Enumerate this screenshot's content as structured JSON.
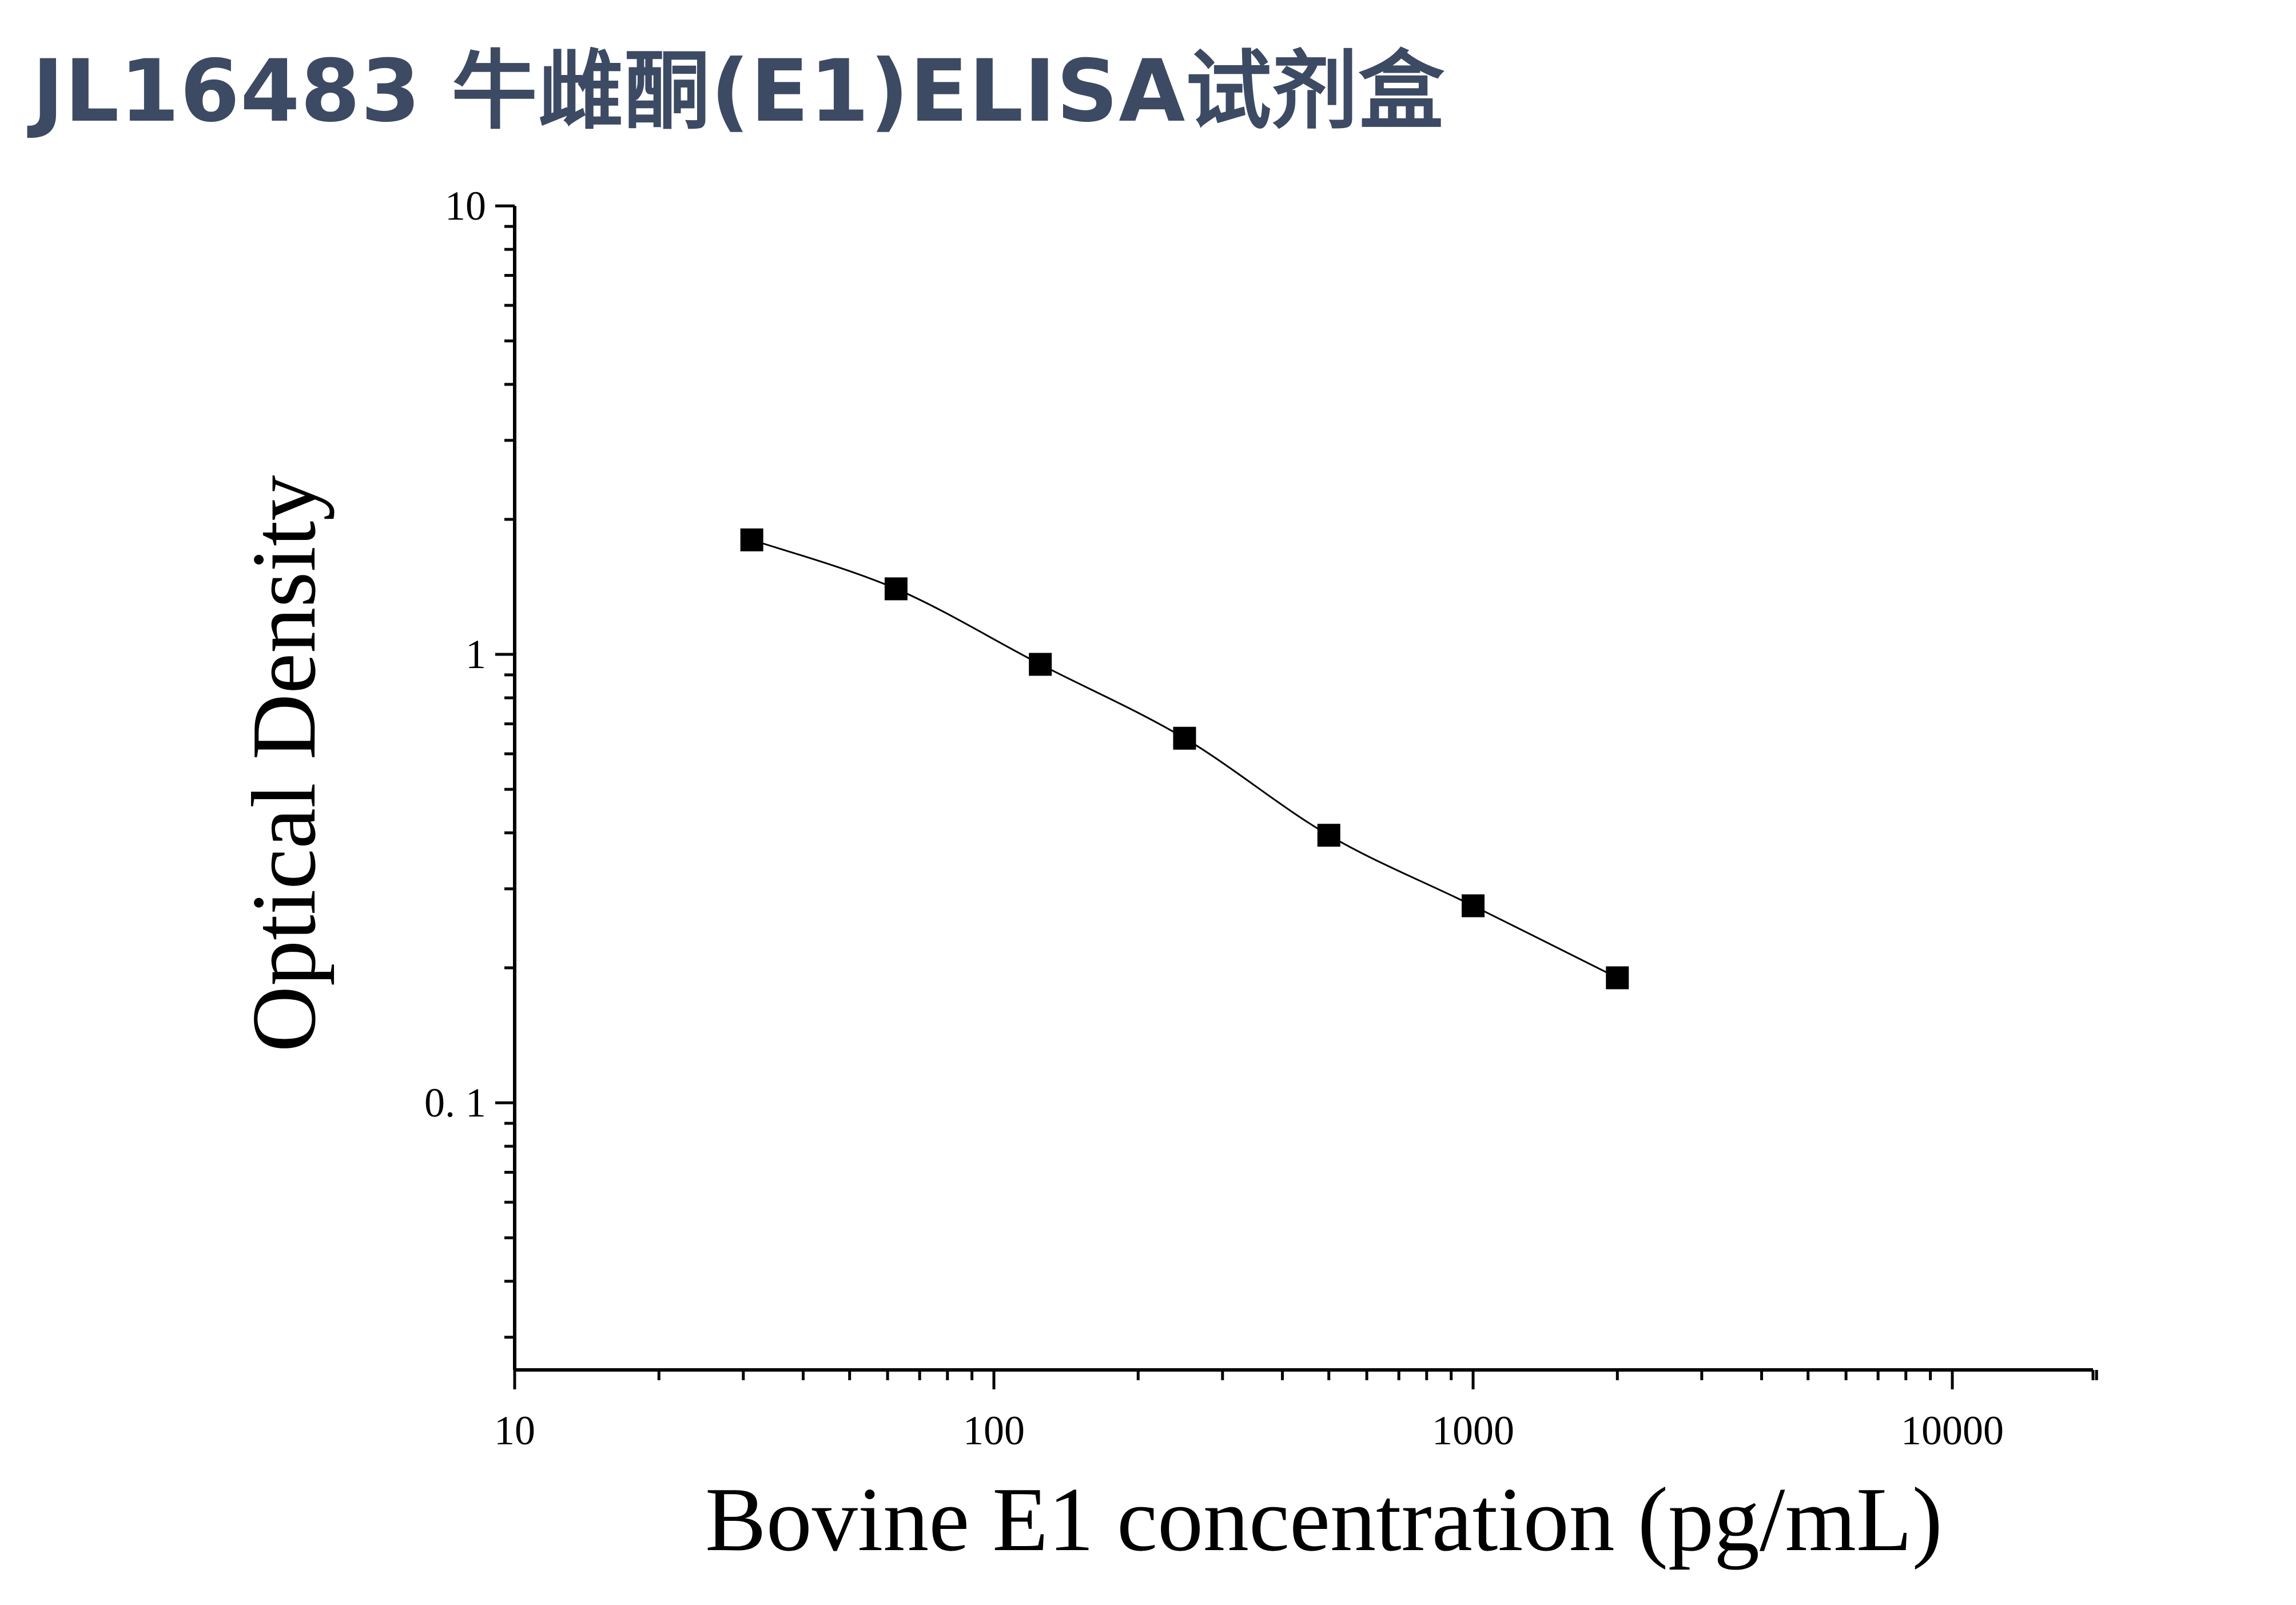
{
  "title": "JL16483 牛雌酮(E1)ELISA试剂盒",
  "chart_data": {
    "type": "scatter",
    "xlabel": "Bovine E1 concentration (pg/mL)",
    "ylabel": "Optical Density",
    "x_scale": "log",
    "y_scale": "log",
    "xlim": [
      10,
      20000
    ],
    "ylim": [
      0.025,
      10
    ],
    "x_ticks": [
      "10",
      "100",
      "1000",
      "10000"
    ],
    "y_ticks": [
      "10",
      "1",
      "0. 1"
    ],
    "grid": false,
    "marker": "square",
    "fit_line": true,
    "colors": {
      "marker": "#000000",
      "line": "#000000",
      "title": "#3d4a63"
    },
    "x": [
      31.25,
      62.5,
      125,
      250,
      500,
      1000,
      2000
    ],
    "y": [
      1.8,
      1.4,
      0.95,
      0.65,
      0.395,
      0.275,
      0.19
    ]
  }
}
